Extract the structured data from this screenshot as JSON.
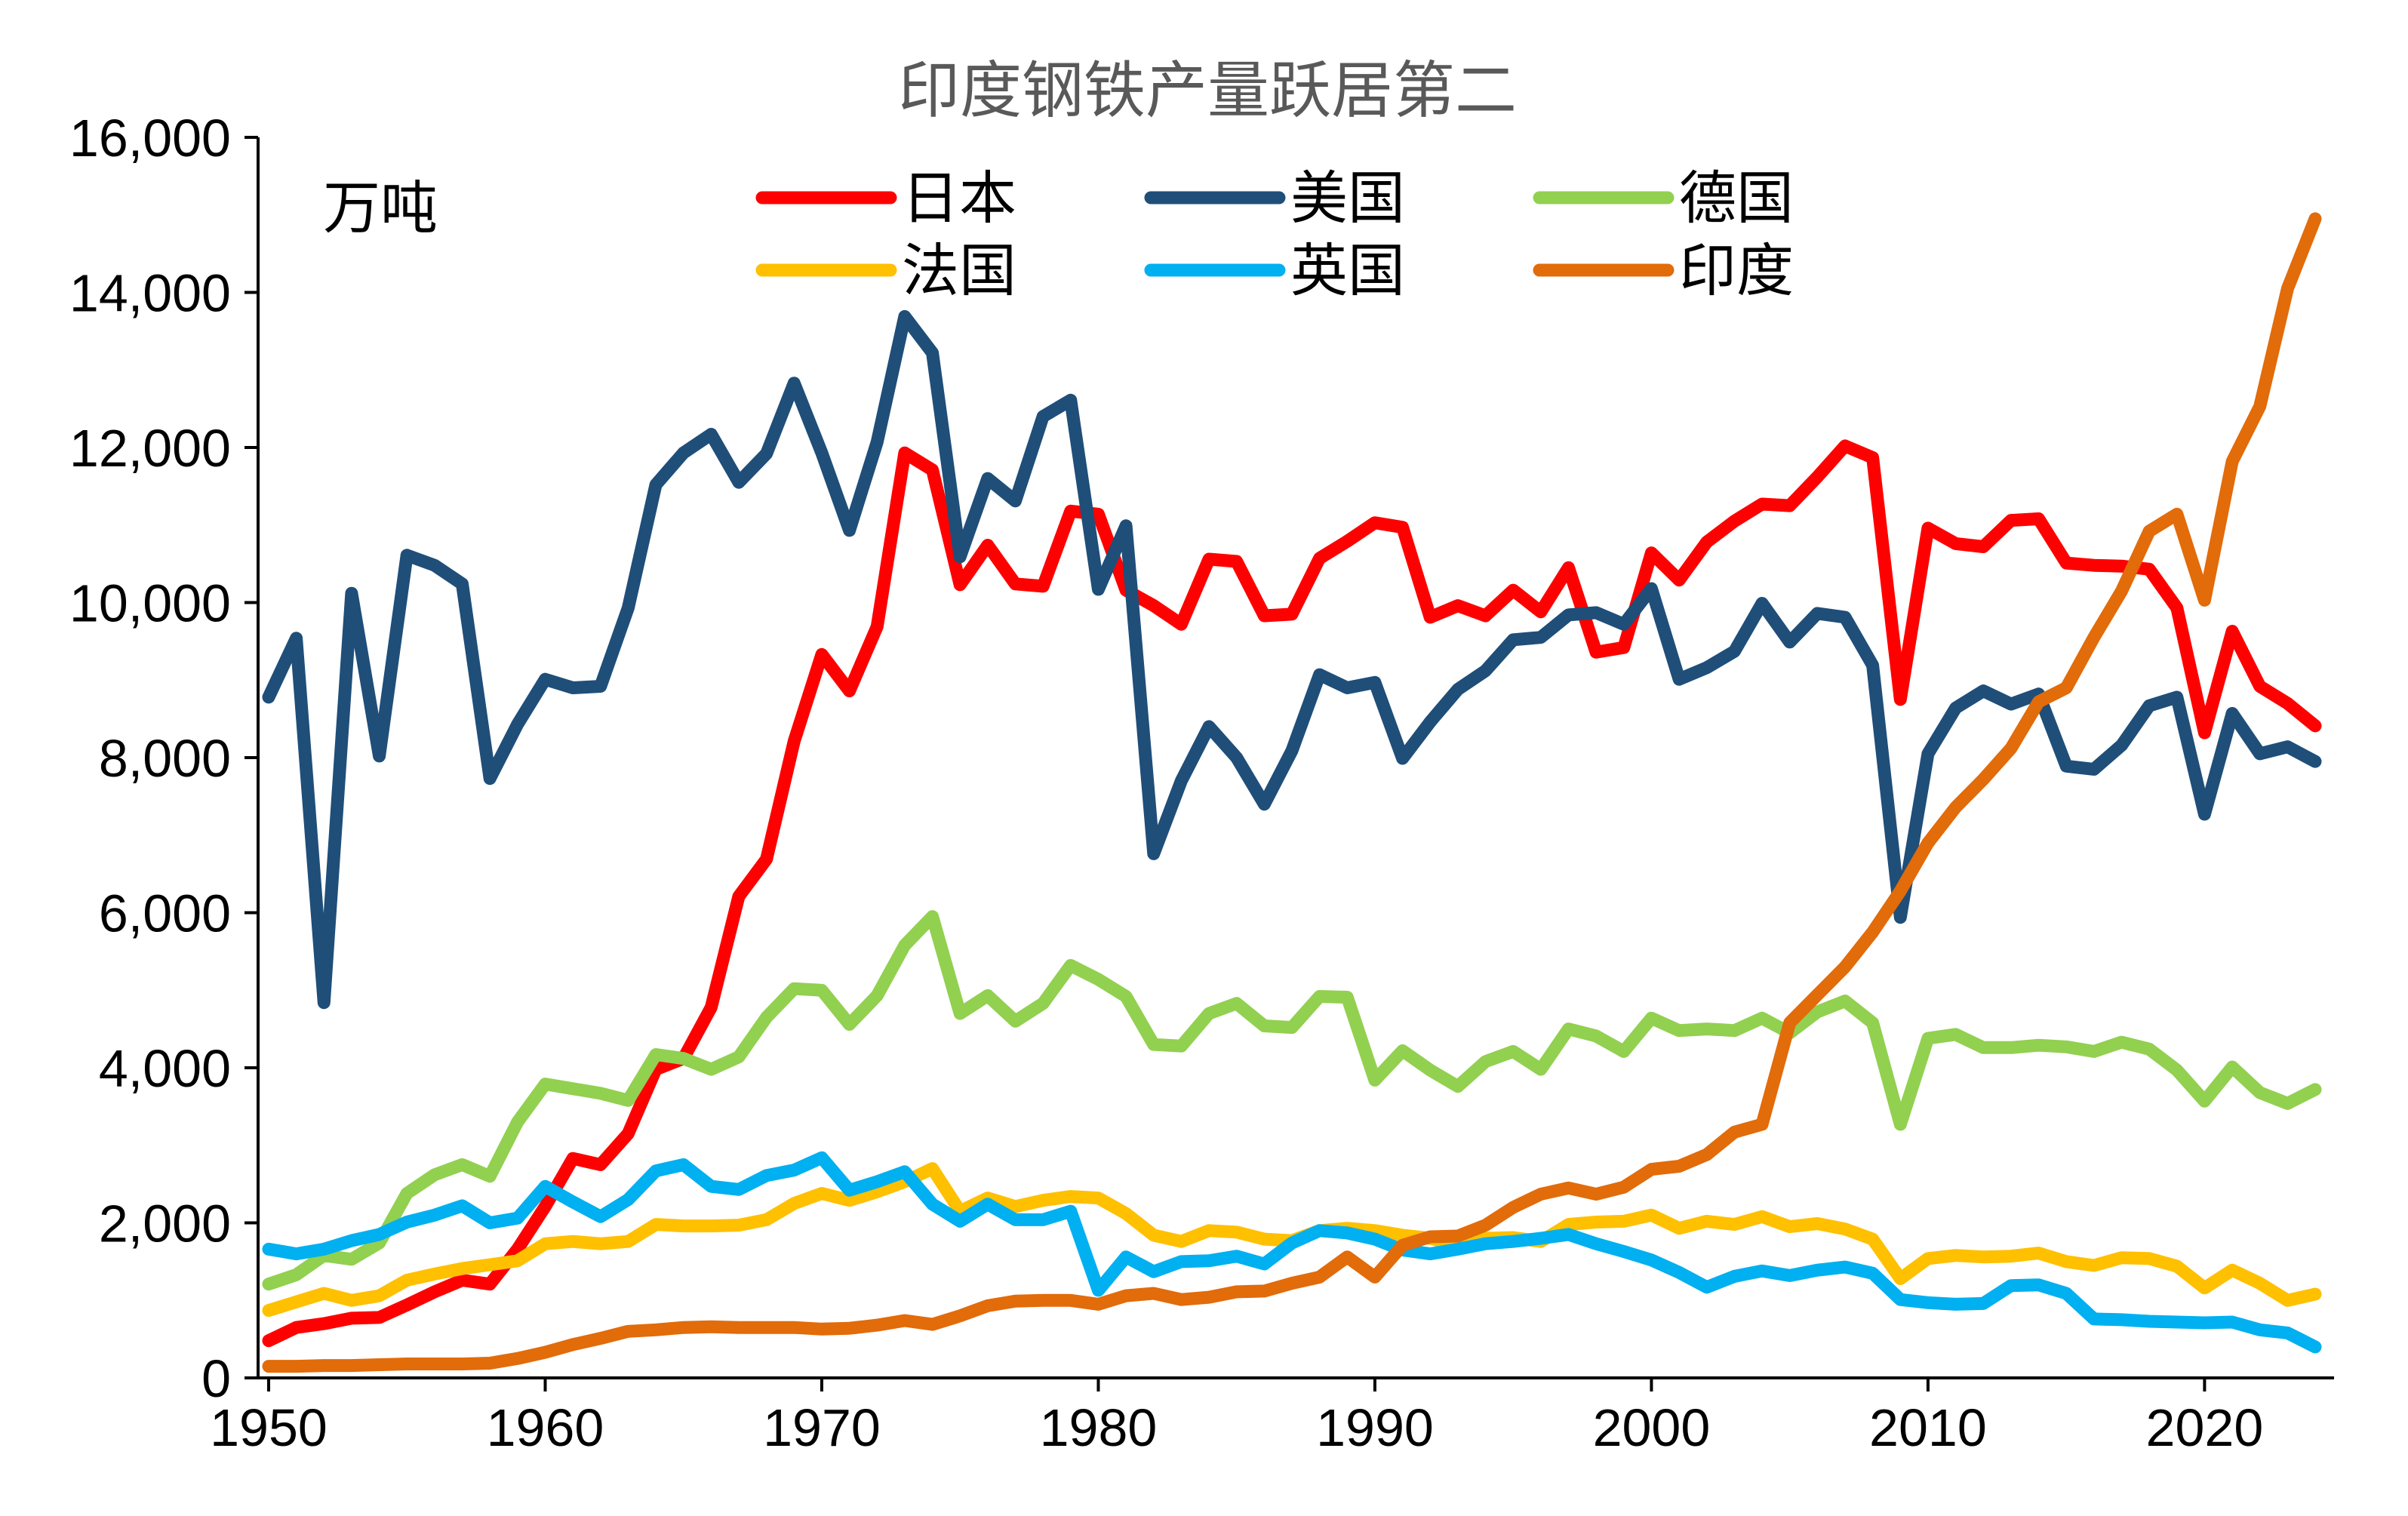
{
  "chart_data": {
    "type": "line",
    "title": "印度钢铁产量跃居第二",
    "unit_label": "万吨",
    "ylabel": "万吨",
    "xlabel": "",
    "xlim": [
      1950,
      2024
    ],
    "ylim": [
      0,
      16000
    ],
    "x_ticks": [
      1950,
      1960,
      1970,
      1980,
      1990,
      2000,
      2010,
      2020
    ],
    "y_ticks": [
      0,
      2000,
      4000,
      6000,
      8000,
      10000,
      12000,
      14000,
      16000
    ],
    "y_tick_labels": [
      "0",
      "2,000",
      "4,000",
      "6,000",
      "8,000",
      "10,000",
      "12,000",
      "14,000",
      "16,000"
    ],
    "legend_position": "top",
    "x": [
      1950,
      1951,
      1952,
      1953,
      1954,
      1955,
      1956,
      1957,
      1958,
      1959,
      1960,
      1961,
      1962,
      1963,
      1964,
      1965,
      1966,
      1967,
      1968,
      1969,
      1970,
      1971,
      1972,
      1973,
      1974,
      1975,
      1976,
      1977,
      1978,
      1979,
      1980,
      1981,
      1982,
      1983,
      1984,
      1985,
      1986,
      1987,
      1988,
      1989,
      1990,
      1991,
      1992,
      1993,
      1994,
      1995,
      1996,
      1997,
      1998,
      1999,
      2000,
      2001,
      2002,
      2003,
      2004,
      2005,
      2006,
      2007,
      2008,
      2009,
      2010,
      2011,
      2012,
      2013,
      2014,
      2015,
      2016,
      2017,
      2018,
      2019,
      2020,
      2021,
      2022,
      2023,
      2024
    ],
    "series": [
      {
        "name": "日本",
        "color": "#ff0000",
        "values": [
          480,
          650,
          700,
          770,
          780,
          940,
          1110,
          1260,
          1210,
          1660,
          2210,
          2830,
          2750,
          3150,
          3980,
          4120,
          4780,
          6210,
          6690,
          8210,
          9330,
          8860,
          9690,
          11930,
          11710,
          10230,
          10740,
          10240,
          10210,
          11180,
          11140,
          10160,
          9960,
          9720,
          10560,
          10530,
          9830,
          9850,
          10570,
          10790,
          11030,
          10970,
          9810,
          9960,
          9830,
          10160,
          9880,
          10450,
          9360,
          9420,
          10640,
          10290,
          10780,
          11050,
          11270,
          11250,
          11620,
          12020,
          11870,
          8750,
          10960,
          10760,
          10720,
          11060,
          11080,
          10510,
          10480,
          10470,
          10430,
          9930,
          8320,
          9630,
          8920,
          8700,
          8410
        ]
      },
      {
        "name": "美国",
        "color": "#1f4e79",
        "values": [
          8780,
          9540,
          4840,
          10120,
          8020,
          10610,
          10480,
          10240,
          7730,
          8430,
          9010,
          8900,
          8920,
          9930,
          11520,
          11930,
          12170,
          11550,
          11920,
          12830,
          11930,
          10930,
          12070,
          13690,
          13220,
          10590,
          11600,
          11310,
          12400,
          12610,
          10170,
          10990,
          6760,
          7700,
          8400,
          8000,
          7400,
          8090,
          9070,
          8900,
          8970,
          7990,
          8460,
          8880,
          9120,
          9520,
          9550,
          9840,
          9870,
          9720,
          10180,
          9010,
          9160,
          9370,
          9990,
          9490,
          9860,
          9810,
          9190,
          5940,
          8050,
          8640,
          8860,
          8690,
          8820,
          7890,
          7850,
          8160,
          8670,
          8780,
          7270,
          8570,
          8050,
          8140,
          7950
        ]
      },
      {
        "name": "德国",
        "color": "#92d050",
        "values": [
          1210,
          1330,
          1580,
          1530,
          1740,
          2380,
          2620,
          2750,
          2600,
          3300,
          3790,
          3730,
          3670,
          3580,
          4170,
          4120,
          3980,
          4140,
          4650,
          5020,
          5000,
          4560,
          4930,
          5580,
          5950,
          4700,
          4930,
          4600,
          4830,
          5320,
          5140,
          4920,
          4300,
          4280,
          4700,
          4830,
          4540,
          4520,
          4920,
          4910,
          3840,
          4220,
          3970,
          3760,
          4080,
          4210,
          3980,
          4500,
          4410,
          4210,
          4640,
          4480,
          4500,
          4480,
          4640,
          4450,
          4720,
          4860,
          4580,
          3270,
          4380,
          4430,
          4260,
          4260,
          4290,
          4270,
          4210,
          4330,
          4240,
          3970,
          3570,
          4010,
          3680,
          3540,
          3720
        ]
      },
      {
        "name": "法国",
        "color": "#ffc000",
        "values": [
          870,
          980,
          1090,
          1000,
          1060,
          1260,
          1340,
          1410,
          1460,
          1510,
          1730,
          1760,
          1730,
          1760,
          1980,
          1960,
          1960,
          1970,
          2040,
          2250,
          2380,
          2290,
          2400,
          2530,
          2700,
          2150,
          2320,
          2210,
          2290,
          2340,
          2320,
          2120,
          1840,
          1760,
          1900,
          1880,
          1790,
          1770,
          1900,
          1930,
          1900,
          1840,
          1800,
          1710,
          1800,
          1810,
          1760,
          1980,
          2010,
          2020,
          2100,
          1930,
          2020,
          1980,
          2080,
          1950,
          1990,
          1920,
          1790,
          1280,
          1540,
          1580,
          1560,
          1570,
          1610,
          1500,
          1450,
          1550,
          1540,
          1440,
          1160,
          1390,
          1220,
          1000,
          1080
        ]
      },
      {
        "name": "英国",
        "color": "#00b0f0",
        "values": [
          1660,
          1600,
          1660,
          1770,
          1850,
          2010,
          2100,
          2220,
          2000,
          2060,
          2470,
          2270,
          2080,
          2300,
          2670,
          2750,
          2470,
          2430,
          2610,
          2680,
          2840,
          2420,
          2530,
          2660,
          2240,
          2020,
          2240,
          2040,
          2040,
          2150,
          1130,
          1560,
          1370,
          1500,
          1510,
          1570,
          1470,
          1740,
          1900,
          1870,
          1790,
          1650,
          1600,
          1660,
          1730,
          1760,
          1800,
          1850,
          1730,
          1630,
          1520,
          1360,
          1170,
          1310,
          1380,
          1320,
          1390,
          1430,
          1350,
          1010,
          970,
          950,
          960,
          1190,
          1200,
          1090,
          760,
          750,
          730,
          720,
          710,
          720,
          620,
          580,
          400
        ]
      },
      {
        "name": "印度",
        "color": "#e26b0a",
        "values": [
          150,
          150,
          160,
          160,
          170,
          180,
          180,
          180,
          190,
          250,
          330,
          430,
          510,
          600,
          620,
          650,
          660,
          650,
          650,
          650,
          630,
          640,
          680,
          740,
          690,
          800,
          930,
          990,
          1000,
          1000,
          950,
          1060,
          1090,
          1010,
          1040,
          1110,
          1120,
          1220,
          1300,
          1560,
          1300,
          1710,
          1820,
          1830,
          1970,
          2200,
          2370,
          2450,
          2370,
          2460,
          2690,
          2730,
          2880,
          3170,
          3270,
          4580,
          4940,
          5300,
          5750,
          6280,
          6900,
          7360,
          7720,
          8120,
          8720,
          8900,
          9550,
          10150,
          10920,
          11140,
          10030,
          11820,
          12530,
          14050,
          14950
        ]
      }
    ]
  }
}
